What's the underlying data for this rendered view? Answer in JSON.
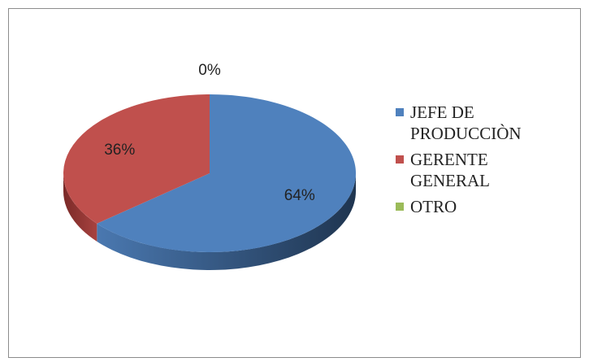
{
  "chart_data": {
    "type": "pie",
    "categories": [
      "JEFE DE PRODUCCIÒN",
      "GERENTE GENERAL",
      "OTRO"
    ],
    "values": [
      64,
      36,
      0
    ],
    "value_labels": [
      "64%",
      "36%",
      "0%"
    ],
    "colors": [
      "#4f81bd",
      "#c0504d",
      "#9bbb59"
    ],
    "legend": "right"
  }
}
